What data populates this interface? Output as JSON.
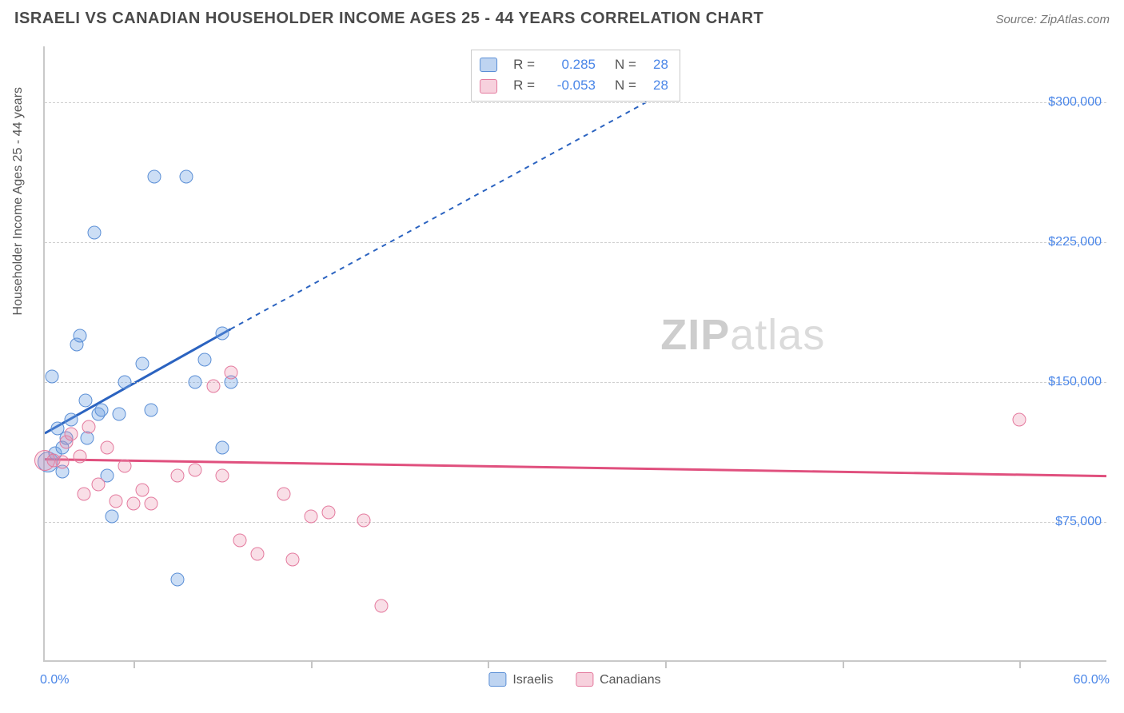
{
  "header": {
    "title": "ISRAELI VS CANADIAN HOUSEHOLDER INCOME AGES 25 - 44 YEARS CORRELATION CHART",
    "source": "Source: ZipAtlas.com"
  },
  "watermark": {
    "bold": "ZIP",
    "rest": "atlas"
  },
  "chart": {
    "type": "scatter",
    "background_color": "#ffffff",
    "grid_color": "#cfcfcf",
    "axis_color": "#c9c9c9",
    "tick_text_color": "#4a86e8",
    "axis_title_color": "#555555",
    "y_axis_title": "Householder Income Ages 25 - 44 years",
    "xlim": [
      0,
      60
    ],
    "ylim": [
      0,
      330000
    ],
    "x_tick_positions": [
      5,
      15,
      25,
      35,
      45,
      55
    ],
    "x_labels": {
      "min": "0.0%",
      "max": "60.0%"
    },
    "y_grid": [
      {
        "v": 75000,
        "label": "$75,000"
      },
      {
        "v": 150000,
        "label": "$150,000"
      },
      {
        "v": 225000,
        "label": "$225,000"
      },
      {
        "v": 300000,
        "label": "$300,000"
      }
    ],
    "series": [
      {
        "name": "Israelis",
        "css_class": "blue",
        "marker_color": "rgba(110,160,225,0.35)",
        "marker_border": "#5b8fd6",
        "marker_size_px": 17,
        "trend": {
          "solid": {
            "x1": 0,
            "y1": 122000,
            "x2": 10.5,
            "y2": 178000
          },
          "dashed_extension_to": {
            "x": 34,
            "y": 300000
          },
          "color": "#2b63c0",
          "width": 3,
          "dash": "6,6"
        },
        "points": [
          {
            "x": 0.4,
            "y": 153000
          },
          {
            "x": 0.6,
            "y": 112000
          },
          {
            "x": 0.7,
            "y": 125000
          },
          {
            "x": 1.0,
            "y": 115000
          },
          {
            "x": 1.0,
            "y": 102000
          },
          {
            "x": 1.2,
            "y": 120000
          },
          {
            "x": 1.5,
            "y": 130000
          },
          {
            "x": 1.8,
            "y": 170000
          },
          {
            "x": 2.0,
            "y": 175000
          },
          {
            "x": 2.3,
            "y": 140000
          },
          {
            "x": 2.4,
            "y": 120000
          },
          {
            "x": 2.8,
            "y": 230000
          },
          {
            "x": 3.0,
            "y": 133000
          },
          {
            "x": 3.2,
            "y": 135000
          },
          {
            "x": 3.5,
            "y": 100000
          },
          {
            "x": 3.8,
            "y": 78000
          },
          {
            "x": 4.2,
            "y": 133000
          },
          {
            "x": 4.5,
            "y": 150000
          },
          {
            "x": 5.5,
            "y": 160000
          },
          {
            "x": 6.0,
            "y": 135000
          },
          {
            "x": 6.2,
            "y": 260000
          },
          {
            "x": 7.5,
            "y": 44000
          },
          {
            "x": 8.0,
            "y": 260000
          },
          {
            "x": 8.5,
            "y": 150000
          },
          {
            "x": 9.0,
            "y": 162000
          },
          {
            "x": 10.0,
            "y": 176000
          },
          {
            "x": 10.0,
            "y": 115000
          },
          {
            "x": 10.5,
            "y": 150000
          }
        ],
        "big_points": [
          {
            "x": 0.2,
            "y": 107000
          }
        ]
      },
      {
        "name": "Canadians",
        "css_class": "pink",
        "marker_color": "rgba(235,140,170,0.28)",
        "marker_border": "#e47a9e",
        "marker_size_px": 17,
        "trend": {
          "solid": {
            "x1": 0,
            "y1": 108000,
            "x2": 60,
            "y2": 99000
          },
          "color": "#e0507e",
          "width": 3
        },
        "points": [
          {
            "x": 0.5,
            "y": 108000
          },
          {
            "x": 1.0,
            "y": 107000
          },
          {
            "x": 1.2,
            "y": 118000
          },
          {
            "x": 1.5,
            "y": 122000
          },
          {
            "x": 2.0,
            "y": 110000
          },
          {
            "x": 2.2,
            "y": 90000
          },
          {
            "x": 2.5,
            "y": 126000
          },
          {
            "x": 3.0,
            "y": 95000
          },
          {
            "x": 3.5,
            "y": 115000
          },
          {
            "x": 4.0,
            "y": 86000
          },
          {
            "x": 4.5,
            "y": 105000
          },
          {
            "x": 5.0,
            "y": 85000
          },
          {
            "x": 5.5,
            "y": 92000
          },
          {
            "x": 6.0,
            "y": 85000
          },
          {
            "x": 7.5,
            "y": 100000
          },
          {
            "x": 8.5,
            "y": 103000
          },
          {
            "x": 9.5,
            "y": 148000
          },
          {
            "x": 10.0,
            "y": 100000
          },
          {
            "x": 10.5,
            "y": 155000
          },
          {
            "x": 11.0,
            "y": 65000
          },
          {
            "x": 12.0,
            "y": 58000
          },
          {
            "x": 13.5,
            "y": 90000
          },
          {
            "x": 14.0,
            "y": 55000
          },
          {
            "x": 15.0,
            "y": 78000
          },
          {
            "x": 16.0,
            "y": 80000
          },
          {
            "x": 18.0,
            "y": 76000
          },
          {
            "x": 19.0,
            "y": 30000
          },
          {
            "x": 55.0,
            "y": 130000
          }
        ],
        "big_points": [
          {
            "x": 0.0,
            "y": 108000
          }
        ]
      }
    ],
    "legend": {
      "items": [
        {
          "label": "Israelis",
          "swatch": "sw-blue"
        },
        {
          "label": "Canadians",
          "swatch": "sw-pink"
        }
      ]
    },
    "stats_box": {
      "rows": [
        {
          "swatch": "sw-blue",
          "r_label": "R =",
          "r_value": "0.285",
          "n_label": "N =",
          "n_value": "28"
        },
        {
          "swatch": "sw-pink",
          "r_label": "R =",
          "r_value": "-0.053",
          "n_label": "N =",
          "n_value": "28"
        }
      ]
    }
  }
}
